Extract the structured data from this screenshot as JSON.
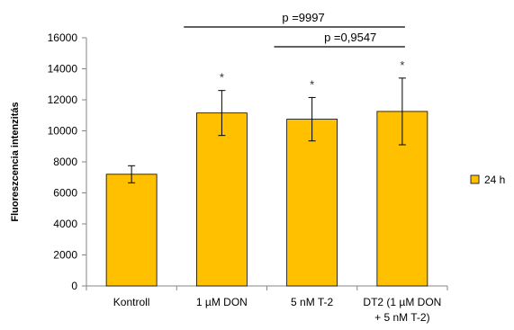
{
  "chart_data": {
    "type": "bar",
    "ylabel": "Fluoreszcencia intenzitás",
    "ylim": [
      0,
      16000
    ],
    "yticks": [
      0,
      2000,
      4000,
      6000,
      8000,
      10000,
      12000,
      14000,
      16000
    ],
    "categories": [
      [
        "Kontroll"
      ],
      [
        "1 µM DON"
      ],
      [
        "5 nM T-2"
      ],
      [
        "DT2 (1 µM DON",
        "+ 5 nM T-2)"
      ]
    ],
    "series": [
      {
        "name": "24 h",
        "color": "#FFC000",
        "values": [
          7200,
          11150,
          10750,
          11250
        ],
        "errors": [
          550,
          1450,
          1400,
          2150
        ],
        "significance": [
          "",
          "*",
          "*",
          "*"
        ]
      }
    ],
    "annotations": [
      {
        "text": "p =9997",
        "from_category": 1,
        "to_category": 3
      },
      {
        "text": "p =0,9547",
        "from_category": 2,
        "to_category": 3
      }
    ],
    "legend": "right",
    "grid": false
  }
}
